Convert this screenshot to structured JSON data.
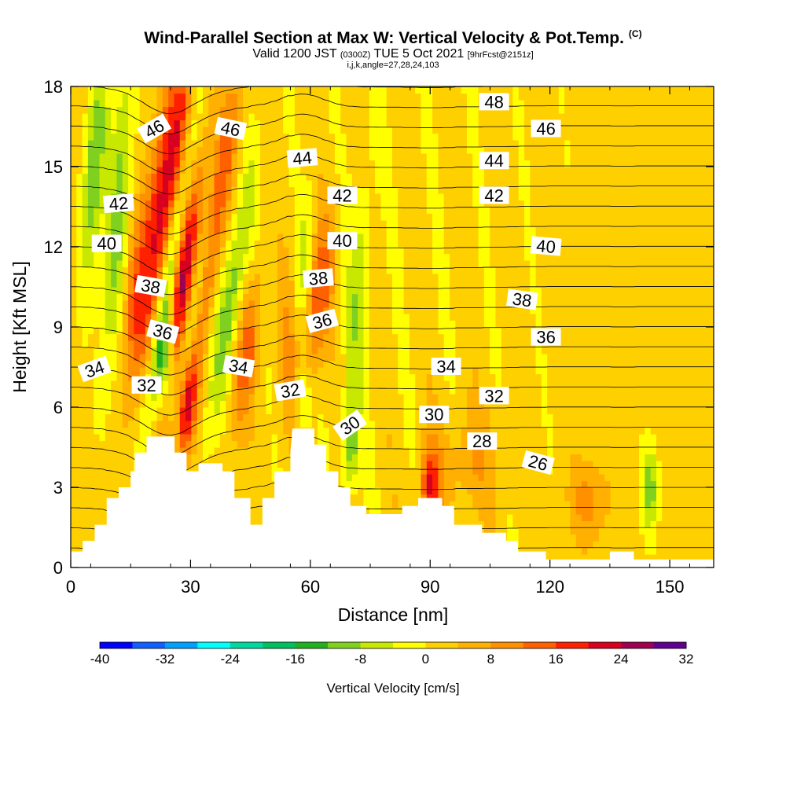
{
  "chart_data": {
    "type": "heatmap",
    "title": "Wind-Parallel Section at Max W: Vertical Velocity & Pot.Temp.",
    "title_mark": "(C)",
    "subtitle_parts": [
      "Valid 1200 JST ",
      "(0300Z)",
      " TUE 5 Oct 2021 ",
      "[9hrFcst@2151z]"
    ],
    "params": "i,j,k,angle=27,28,24,103",
    "xlabel": "Distance [nm]",
    "ylabel": "Height [Kft MSL]",
    "xlim": [
      0,
      161
    ],
    "ylim": [
      0,
      18
    ],
    "xticks": [
      0,
      30,
      60,
      90,
      120,
      150
    ],
    "yticks": [
      0,
      3,
      6,
      9,
      12,
      15,
      18
    ],
    "colorbar": {
      "label": "Vertical Velocity [cm/s]",
      "ticks": [
        -40,
        -32,
        -24,
        -16,
        -8,
        0,
        8,
        16,
        24,
        32
      ],
      "levels": [
        -40,
        -36,
        -32,
        -28,
        -24,
        -20,
        -16,
        -12,
        -8,
        -4,
        0,
        4,
        8,
        12,
        16,
        20,
        24,
        28,
        32
      ],
      "colors": [
        "#0000ff",
        "#1060ff",
        "#00a0ff",
        "#00ffff",
        "#00d8a0",
        "#00c060",
        "#20b020",
        "#80d020",
        "#c8e800",
        "#ffff00",
        "#ffd000",
        "#ffb000",
        "#ff9000",
        "#ff6000",
        "#ff2000",
        "#d80020",
        "#a00050",
        "#600090"
      ]
    },
    "terrain": [
      [
        0,
        0.6
      ],
      [
        3,
        0.6
      ],
      [
        3,
        1.0
      ],
      [
        6,
        1.0
      ],
      [
        6,
        1.6
      ],
      [
        9,
        1.6
      ],
      [
        9,
        2.6
      ],
      [
        12,
        2.6
      ],
      [
        12,
        3.0
      ],
      [
        15,
        3.0
      ],
      [
        15,
        3.6
      ],
      [
        16,
        3.6
      ],
      [
        16,
        4.3
      ],
      [
        19,
        4.3
      ],
      [
        19,
        4.9
      ],
      [
        26,
        4.9
      ],
      [
        26,
        4.3
      ],
      [
        29,
        4.3
      ],
      [
        29,
        3.6
      ],
      [
        32,
        3.6
      ],
      [
        32,
        3.9
      ],
      [
        38,
        3.9
      ],
      [
        38,
        3.6
      ],
      [
        41,
        3.6
      ],
      [
        41,
        2.6
      ],
      [
        45,
        2.6
      ],
      [
        45,
        1.6
      ],
      [
        48,
        1.6
      ],
      [
        48,
        2.6
      ],
      [
        51,
        2.6
      ],
      [
        51,
        3.6
      ],
      [
        55,
        3.6
      ],
      [
        55,
        4.3
      ],
      [
        55.5,
        5.2
      ],
      [
        61,
        5.2
      ],
      [
        61,
        4.6
      ],
      [
        64,
        4.6
      ],
      [
        64,
        3.6
      ],
      [
        67,
        3.6
      ],
      [
        67,
        3.0
      ],
      [
        70,
        3.0
      ],
      [
        70,
        2.3
      ],
      [
        74,
        2.3
      ],
      [
        74,
        2.0
      ],
      [
        83,
        2.0
      ],
      [
        83,
        2.3
      ],
      [
        87,
        2.3
      ],
      [
        87,
        2.6
      ],
      [
        93,
        2.6
      ],
      [
        93,
        2.3
      ],
      [
        96,
        2.3
      ],
      [
        96,
        1.6
      ],
      [
        103,
        1.6
      ],
      [
        103,
        1.3
      ],
      [
        109,
        1.3
      ],
      [
        109,
        1.0
      ],
      [
        112,
        1.0
      ],
      [
        112,
        0.6
      ],
      [
        119,
        0.6
      ],
      [
        119,
        0.3
      ],
      [
        135,
        0.3
      ],
      [
        135,
        0.6
      ],
      [
        141,
        0.6
      ],
      [
        141,
        0.3
      ],
      [
        161,
        0.3
      ]
    ],
    "velocity_features": [
      {
        "x": 24,
        "y": 14,
        "ax": 5,
        "ay": 6,
        "rot": -0.25,
        "w": 22
      },
      {
        "x": 27,
        "y": 10,
        "ax": 3,
        "ay": 5,
        "rot": -0.2,
        "w": 26
      },
      {
        "x": 29,
        "y": 6,
        "ax": 2.5,
        "ay": 2,
        "rot": -0.1,
        "w": 20
      },
      {
        "x": 26,
        "y": 12,
        "ax": 2.5,
        "ay": 6,
        "rot": -0.25,
        "w": -24
      },
      {
        "x": 24,
        "y": 7.5,
        "ax": 2.5,
        "ay": 2,
        "rot": -0.1,
        "w": -22
      },
      {
        "x": 30,
        "y": 9,
        "ax": 2,
        "ay": 4,
        "rot": -0.25,
        "w": -14
      },
      {
        "x": 36,
        "y": 13,
        "ax": 3,
        "ay": 6,
        "rot": -0.25,
        "w": 14
      },
      {
        "x": 40,
        "y": 10,
        "ax": 3,
        "ay": 5,
        "rot": -0.25,
        "w": -12
      },
      {
        "x": 44,
        "y": 8,
        "ax": 3,
        "ay": 3,
        "rot": -0.2,
        "w": 12
      },
      {
        "x": 12,
        "y": 13,
        "ax": 3,
        "ay": 6,
        "rot": -0.1,
        "w": -12
      },
      {
        "x": 6,
        "y": 15,
        "ax": 2.5,
        "ay": 4,
        "rot": -0.1,
        "w": -14
      },
      {
        "x": 16,
        "y": 10,
        "ax": 3,
        "ay": 3,
        "rot": 0,
        "w": 8
      },
      {
        "x": 62,
        "y": 10,
        "ax": 3,
        "ay": 3,
        "rot": -0.15,
        "w": 14
      },
      {
        "x": 58,
        "y": 11,
        "ax": 2,
        "ay": 3,
        "rot": -0.15,
        "w": -8
      },
      {
        "x": 55,
        "y": 8,
        "ax": 3,
        "ay": 3,
        "rot": 0,
        "w": 8
      },
      {
        "x": 58,
        "y": 6.5,
        "ax": 2,
        "ay": 1.5,
        "rot": 0,
        "w": -10
      },
      {
        "x": 72,
        "y": 10,
        "ax": 3,
        "ay": 5,
        "rot": -0.1,
        "w": -8
      },
      {
        "x": 90,
        "y": 3,
        "ax": 2.5,
        "ay": 1.5,
        "rot": 0,
        "w": 18
      },
      {
        "x": 70,
        "y": 4.5,
        "ax": 2,
        "ay": 1.5,
        "rot": 0,
        "w": -12
      },
      {
        "x": 145,
        "y": 3,
        "ax": 2,
        "ay": 1.5,
        "rot": 0,
        "w": -12
      },
      {
        "x": 130,
        "y": 2.5,
        "ax": 5,
        "ay": 1.5,
        "rot": 0,
        "w": 8
      },
      {
        "x": 100,
        "y": 4,
        "ax": 8,
        "ay": 2,
        "rot": 0,
        "w": 6
      }
    ],
    "contour_labels": [
      {
        "text": "48",
        "x": 106,
        "y": 17.4,
        "rot": 0
      },
      {
        "text": "46",
        "x": 21,
        "y": 16.4,
        "rot": -30
      },
      {
        "text": "46",
        "x": 40,
        "y": 16.4,
        "rot": 12
      },
      {
        "text": "46",
        "x": 119,
        "y": 16.4,
        "rot": 0
      },
      {
        "text": "44",
        "x": 58,
        "y": 15.3,
        "rot": -5
      },
      {
        "text": "44",
        "x": 106,
        "y": 15.2,
        "rot": 0
      },
      {
        "text": "42",
        "x": 12,
        "y": 13.6,
        "rot": -5
      },
      {
        "text": "42",
        "x": 68,
        "y": 13.9,
        "rot": 0
      },
      {
        "text": "42",
        "x": 106,
        "y": 13.9,
        "rot": 0
      },
      {
        "text": "40",
        "x": 9,
        "y": 12.1,
        "rot": 0
      },
      {
        "text": "40",
        "x": 68,
        "y": 12.2,
        "rot": 0
      },
      {
        "text": "40",
        "x": 119,
        "y": 12.0,
        "rot": 5
      },
      {
        "text": "38",
        "x": 20,
        "y": 10.5,
        "rot": 10
      },
      {
        "text": "38",
        "x": 62,
        "y": 10.8,
        "rot": -5
      },
      {
        "text": "38",
        "x": 113,
        "y": 10.0,
        "rot": 8
      },
      {
        "text": "36",
        "x": 23,
        "y": 8.8,
        "rot": 15
      },
      {
        "text": "36",
        "x": 63,
        "y": 9.2,
        "rot": -15
      },
      {
        "text": "36",
        "x": 119,
        "y": 8.6,
        "rot": 0
      },
      {
        "text": "34",
        "x": 6,
        "y": 7.4,
        "rot": -20
      },
      {
        "text": "34",
        "x": 42,
        "y": 7.5,
        "rot": 10
      },
      {
        "text": "34",
        "x": 94,
        "y": 7.5,
        "rot": 0
      },
      {
        "text": "32",
        "x": 19,
        "y": 6.8,
        "rot": 0
      },
      {
        "text": "32",
        "x": 55,
        "y": 6.6,
        "rot": -10
      },
      {
        "text": "32",
        "x": 106,
        "y": 6.4,
        "rot": 0
      },
      {
        "text": "30",
        "x": 70,
        "y": 5.3,
        "rot": -35
      },
      {
        "text": "30",
        "x": 91,
        "y": 5.7,
        "rot": 0
      },
      {
        "text": "28",
        "x": 103,
        "y": 4.7,
        "rot": 0
      },
      {
        "text": "26",
        "x": 117,
        "y": 3.9,
        "rot": 15
      }
    ],
    "isotherm_levels": [
      24,
      25,
      26,
      27,
      28,
      29,
      30,
      31,
      32,
      33,
      34,
      35,
      36,
      37,
      38,
      39,
      40,
      41,
      42,
      43,
      44,
      45,
      46,
      47,
      48,
      49
    ]
  }
}
